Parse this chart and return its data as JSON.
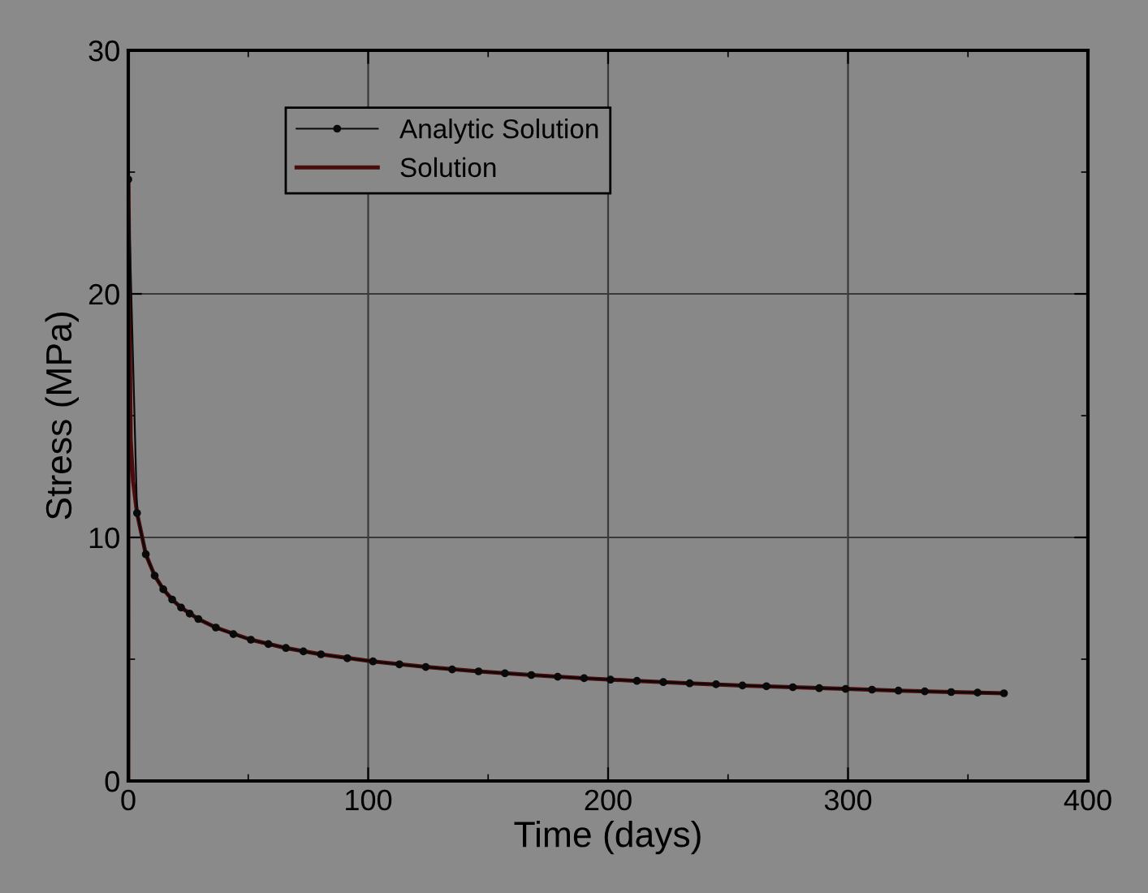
{
  "chart_data": {
    "type": "line",
    "xlabel": "Time (days)",
    "ylabel": "Stress (MPa)",
    "xlim": [
      0,
      400
    ],
    "ylim": [
      0,
      30
    ],
    "xticks": [
      0,
      {
        "value": 50,
        "label": null
      },
      100,
      {
        "value": 150,
        "label": null
      },
      200,
      {
        "value": 250,
        "label": null
      },
      300,
      {
        "value": 350,
        "label": null
      },
      400
    ],
    "yticks": [
      0,
      {
        "value": 5,
        "label": null
      },
      10,
      {
        "value": 15,
        "label": null
      },
      20,
      {
        "value": 25,
        "label": null
      },
      30
    ],
    "grid": true,
    "legend": "top left",
    "series": [
      {
        "name": "Analytic Solution",
        "color": "#0a0a0a",
        "marker": "circle",
        "x": [
          0,
          3.65,
          7.3,
          11,
          14.6,
          18.3,
          22,
          25.6,
          29.2,
          36.5,
          43.8,
          51.1,
          58.4,
          65.7,
          73,
          80.3,
          91.3,
          102,
          113,
          124,
          135,
          146,
          157,
          168,
          179,
          190,
          201,
          212,
          223,
          234,
          245,
          256,
          266,
          277,
          288,
          299,
          310,
          321,
          332,
          343,
          354,
          365
        ],
        "values": [
          24.7,
          11.0,
          9.31,
          8.43,
          7.87,
          7.45,
          7.12,
          6.87,
          6.65,
          6.3,
          6.03,
          5.8,
          5.62,
          5.46,
          5.32,
          5.2,
          5.04,
          4.91,
          4.79,
          4.68,
          4.58,
          4.5,
          4.42,
          4.35,
          4.28,
          4.22,
          4.16,
          4.11,
          4.06,
          4.01,
          3.97,
          3.92,
          3.89,
          3.85,
          3.81,
          3.78,
          3.75,
          3.71,
          3.68,
          3.65,
          3.63,
          3.6
        ]
      },
      {
        "name": "Solution",
        "color": "#4a0c0c",
        "marker": "none",
        "x": [
          0,
          0.05,
          1,
          2,
          3.65,
          7.3,
          11,
          14.6,
          18.3,
          22,
          29.2,
          36.5,
          51.1,
          65.7,
          80.3,
          102,
          124,
          146,
          168,
          190,
          212,
          234,
          256,
          277,
          299,
          321,
          343,
          365
        ],
        "values": [
          0,
          24.7,
          14.0,
          12.3,
          11.0,
          9.31,
          8.43,
          7.87,
          7.45,
          7.12,
          6.65,
          6.3,
          5.8,
          5.46,
          5.2,
          4.91,
          4.68,
          4.5,
          4.35,
          4.22,
          4.11,
          4.01,
          3.92,
          3.85,
          3.78,
          3.71,
          3.65,
          3.6
        ]
      }
    ]
  }
}
